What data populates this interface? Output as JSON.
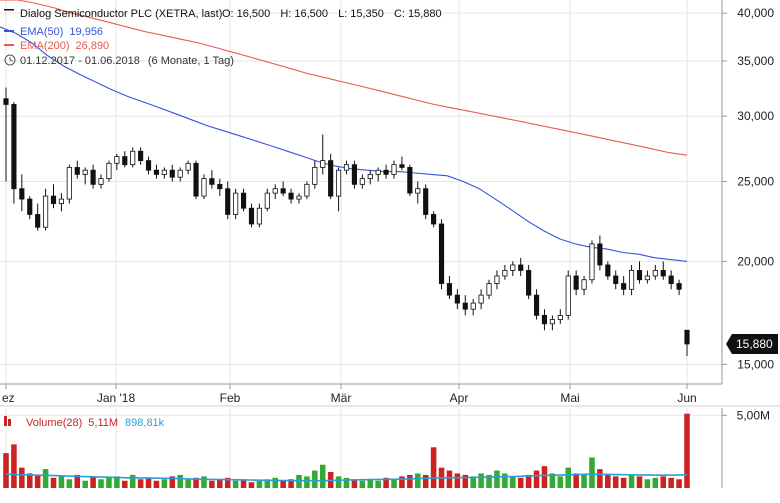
{
  "header": {
    "title": "Dialog Semiconductor PLC (XETRA, last)",
    "ohlc": [
      {
        "label": "O:",
        "value": "16,500"
      },
      {
        "label": "H:",
        "value": "16,500"
      },
      {
        "label": "L:",
        "value": "15,350"
      },
      {
        "label": "C:",
        "value": "15,880"
      }
    ],
    "ema50": {
      "label": "EMA(50)",
      "value": "19,956",
      "color": "#3355dd"
    },
    "ema200": {
      "label": "EMA(200)",
      "value": "26,890",
      "color": "#e85a4f"
    },
    "range": "01.12.2017 - 01.06.2018",
    "period": "(6 Monate, 1 Tag)",
    "icons": [
      "clock-icon"
    ]
  },
  "last_price": "15,880",
  "volume_legend": {
    "label": "Volume(28)",
    "value": "5,11M",
    "ma_value": "898,81k"
  },
  "colors": {
    "up": "#33aa33",
    "down": "#cc2222",
    "candle": "#111111",
    "ma": "#2a9fd6",
    "grid": "#e6e6e6"
  },
  "chart_data": [
    {
      "type": "candlestick",
      "title": "",
      "x_tick_labels": [
        "ez",
        "Jan '18",
        "Feb",
        "Mär",
        "Apr",
        "Mai",
        "Jun"
      ],
      "y_tick_labels": [
        "40,000",
        "35,000",
        "30,000",
        "25,000",
        "20,000",
        "15,000"
      ],
      "ylim": [
        14.2,
        41.5
      ],
      "yscale": "log",
      "grid": true,
      "series": [
        {
          "name": "EMA(50)",
          "values": [
            38.5,
            37.8,
            36.8,
            35.5,
            34.5,
            33.7,
            33.0,
            32.3,
            31.7,
            31.2,
            30.7,
            30.2,
            29.7,
            29.2,
            28.8,
            28.4,
            28.0,
            27.6,
            27.2,
            26.8,
            26.4,
            26.1,
            25.9,
            25.8,
            25.7,
            25.7,
            25.6,
            25.5,
            25.4,
            25.0,
            24.5,
            23.8,
            23.1,
            22.4,
            21.8,
            21.3,
            21.0,
            20.8,
            20.7,
            20.5,
            20.4,
            20.2,
            20.1,
            20.0
          ]
        },
        {
          "name": "EMA(200)",
          "values": [
            42.0,
            41.6,
            41.1,
            40.6,
            40.0,
            39.5,
            39.0,
            38.5,
            38.0,
            37.6,
            37.2,
            36.8,
            36.3,
            35.8,
            35.3,
            34.8,
            34.3,
            33.8,
            33.4,
            33.0,
            32.6,
            32.2,
            31.8,
            31.4,
            31.0,
            30.7,
            30.4,
            30.1,
            29.8,
            29.5,
            29.2,
            28.9,
            28.6,
            28.3,
            28.0,
            27.7,
            27.4,
            27.1,
            26.9
          ]
        }
      ],
      "candles": [
        [
          31.5,
          32.5,
          25.0,
          31.0
        ],
        [
          31.0,
          31.2,
          23.5,
          24.5
        ],
        [
          24.5,
          25.5,
          23.0,
          23.8
        ],
        [
          23.8,
          24.0,
          22.5,
          22.8
        ],
        [
          22.8,
          23.5,
          21.8,
          22.0
        ],
        [
          22.0,
          24.5,
          21.8,
          24.0
        ],
        [
          24.0,
          24.8,
          23.2,
          23.5
        ],
        [
          23.5,
          24.2,
          23.0,
          23.8
        ],
        [
          23.8,
          26.2,
          23.5,
          26.0
        ],
        [
          26.0,
          26.5,
          25.2,
          25.5
        ],
        [
          25.5,
          26.0,
          24.8,
          25.8
        ],
        [
          25.8,
          26.2,
          24.5,
          24.8
        ],
        [
          24.8,
          25.5,
          24.5,
          25.2
        ],
        [
          25.2,
          26.5,
          25.0,
          26.3
        ],
        [
          26.3,
          27.0,
          25.8,
          26.8
        ],
        [
          26.8,
          27.2,
          26.0,
          26.2
        ],
        [
          26.2,
          27.5,
          26.0,
          27.2
        ],
        [
          27.2,
          27.5,
          26.2,
          26.5
        ],
        [
          26.5,
          26.8,
          25.5,
          25.8
        ],
        [
          25.8,
          26.2,
          25.2,
          25.5
        ],
        [
          25.5,
          26.0,
          25.2,
          25.8
        ],
        [
          25.8,
          26.2,
          25.0,
          25.3
        ],
        [
          25.3,
          26.0,
          25.0,
          25.8
        ],
        [
          25.8,
          26.5,
          25.5,
          26.3
        ],
        [
          26.3,
          26.5,
          23.8,
          24.0
        ],
        [
          24.0,
          25.5,
          23.8,
          25.2
        ],
        [
          25.2,
          25.8,
          24.5,
          24.8
        ],
        [
          24.8,
          25.2,
          24.0,
          24.5
        ],
        [
          24.5,
          25.0,
          22.5,
          22.8
        ],
        [
          22.8,
          24.5,
          22.5,
          24.2
        ],
        [
          24.2,
          24.5,
          23.0,
          23.2
        ],
        [
          23.2,
          23.5,
          22.0,
          22.2
        ],
        [
          22.2,
          23.5,
          22.0,
          23.2
        ],
        [
          23.2,
          24.5,
          23.0,
          24.2
        ],
        [
          24.2,
          24.8,
          23.8,
          24.5
        ],
        [
          24.5,
          25.0,
          24.0,
          24.2
        ],
        [
          24.2,
          24.5,
          23.5,
          23.8
        ],
        [
          23.8,
          24.2,
          23.5,
          24.0
        ],
        [
          24.0,
          25.0,
          23.8,
          24.8
        ],
        [
          24.8,
          26.5,
          24.5,
          26.0
        ],
        [
          26.0,
          28.5,
          25.5,
          26.5
        ],
        [
          26.5,
          27.0,
          23.8,
          24.0
        ],
        [
          24.0,
          26.0,
          23.0,
          25.8
        ],
        [
          25.8,
          26.5,
          25.5,
          26.2
        ],
        [
          26.2,
          26.5,
          24.5,
          24.8
        ],
        [
          24.8,
          25.5,
          24.5,
          25.2
        ],
        [
          25.2,
          25.8,
          24.8,
          25.5
        ],
        [
          25.5,
          26.0,
          25.0,
          25.8
        ],
        [
          25.8,
          26.2,
          25.2,
          25.5
        ],
        [
          25.5,
          26.5,
          25.2,
          26.2
        ],
        [
          26.2,
          26.8,
          25.8,
          26.0
        ],
        [
          26.0,
          26.2,
          24.0,
          24.2
        ],
        [
          24.2,
          25.0,
          23.5,
          24.5
        ],
        [
          24.5,
          24.8,
          22.5,
          22.8
        ],
        [
          22.8,
          23.0,
          22.0,
          22.2
        ],
        [
          22.2,
          22.5,
          18.5,
          18.8
        ],
        [
          18.8,
          19.2,
          18.0,
          18.2
        ],
        [
          18.2,
          18.5,
          17.5,
          17.8
        ],
        [
          17.8,
          18.2,
          17.2,
          17.5
        ],
        [
          17.5,
          18.0,
          17.2,
          17.8
        ],
        [
          17.8,
          18.5,
          17.5,
          18.2
        ],
        [
          18.2,
          19.0,
          18.0,
          18.8
        ],
        [
          18.8,
          19.5,
          18.5,
          19.2
        ],
        [
          19.2,
          19.8,
          19.0,
          19.5
        ],
        [
          19.5,
          20.0,
          19.2,
          19.8
        ],
        [
          19.8,
          20.2,
          19.2,
          19.5
        ],
        [
          19.5,
          19.8,
          18.0,
          18.2
        ],
        [
          18.2,
          18.5,
          17.0,
          17.2
        ],
        [
          17.2,
          17.5,
          16.5,
          16.8
        ],
        [
          16.8,
          17.2,
          16.5,
          17.0
        ],
        [
          17.0,
          17.5,
          16.8,
          17.2
        ],
        [
          17.2,
          19.5,
          17.0,
          19.2
        ],
        [
          19.2,
          19.5,
          18.2,
          18.5
        ],
        [
          18.5,
          19.2,
          18.2,
          19.0
        ],
        [
          19.0,
          21.2,
          18.8,
          21.0
        ],
        [
          21.0,
          21.5,
          19.5,
          19.8
        ],
        [
          19.8,
          20.0,
          19.0,
          19.2
        ],
        [
          19.2,
          19.5,
          18.5,
          18.8
        ],
        [
          18.8,
          19.2,
          18.2,
          18.5
        ],
        [
          18.5,
          19.8,
          18.2,
          19.5
        ],
        [
          19.5,
          20.0,
          18.8,
          19.0
        ],
        [
          19.0,
          19.5,
          18.8,
          19.2
        ],
        [
          19.2,
          19.8,
          19.0,
          19.5
        ],
        [
          19.5,
          20.0,
          19.0,
          19.2
        ],
        [
          19.2,
          19.5,
          18.5,
          18.8
        ],
        [
          18.8,
          19.0,
          18.2,
          18.5
        ],
        [
          16.5,
          16.5,
          15.35,
          15.88
        ]
      ]
    },
    {
      "type": "bar",
      "title": "",
      "ylabel": "",
      "y_tick_labels": [
        "5,00M"
      ],
      "ylim": [
        0,
        5.5
      ],
      "series": [
        {
          "name": "Volume(28)",
          "values": [
            2.4,
            3.0,
            1.4,
            1.0,
            0.9,
            1.3,
            0.7,
            0.8,
            0.6,
            0.9,
            0.5,
            0.8,
            0.6,
            0.7,
            0.8,
            0.5,
            0.9,
            0.6,
            0.7,
            0.5,
            0.6,
            0.8,
            0.9,
            0.6,
            0.7,
            0.8,
            0.5,
            0.6,
            0.7,
            0.5,
            0.6,
            0.4,
            0.5,
            0.6,
            0.7,
            0.5,
            0.6,
            0.9,
            0.8,
            1.2,
            1.6,
            1.1,
            0.8,
            0.7,
            0.6,
            0.5,
            0.6,
            0.5,
            0.7,
            0.6,
            0.8,
            0.9,
            1.0,
            0.9,
            2.8,
            1.4,
            1.2,
            1.0,
            0.9,
            0.8,
            1.0,
            0.9,
            1.2,
            1.0,
            0.8,
            0.7,
            0.9,
            1.2,
            1.5,
            1.0,
            0.8,
            1.4,
            1.0,
            0.9,
            2.1,
            1.3,
            0.9,
            0.8,
            0.7,
            0.9,
            0.8,
            0.6,
            0.7,
            0.8,
            0.7,
            0.6,
            5.11
          ]
        },
        {
          "name": "898,81k",
          "values": [
            0.95,
            0.9,
            0.85,
            0.8,
            0.75,
            0.7,
            0.68,
            0.65,
            0.6,
            0.58,
            0.55,
            0.52,
            0.5,
            0.5,
            0.55,
            0.58,
            0.6,
            0.65,
            0.7,
            0.72,
            0.75,
            0.8,
            0.85,
            0.9,
            0.95,
            0.92,
            0.9,
            0.88,
            0.9
          ]
        }
      ]
    }
  ]
}
